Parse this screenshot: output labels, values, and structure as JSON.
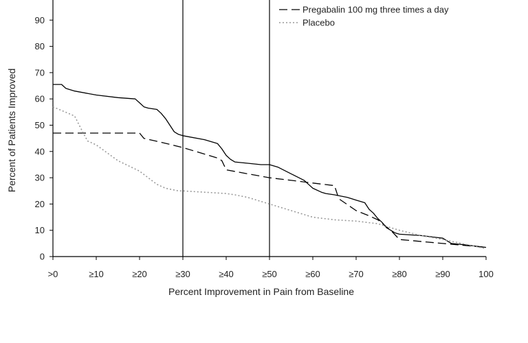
{
  "chart_data": {
    "type": "line",
    "title": "",
    "xlabel": "Percent Improvement in Pain from Baseline",
    "ylabel": "Percent of Patients Improved",
    "xlim": [
      0,
      100
    ],
    "ylim": [
      0,
      100
    ],
    "x_ticks": [
      {
        "value": 0,
        "label": ">0"
      },
      {
        "value": 10,
        "label": "≥10"
      },
      {
        "value": 20,
        "label": "≥20"
      },
      {
        "value": 30,
        "label": "≥30"
      },
      {
        "value": 40,
        "label": "≥40"
      },
      {
        "value": 50,
        "label": "≥50"
      },
      {
        "value": 60,
        "label": "≥60"
      },
      {
        "value": 70,
        "label": "≥70"
      },
      {
        "value": 80,
        "label": "≥80"
      },
      {
        "value": 90,
        "label": "≥90"
      },
      {
        "value": 100,
        "label": "100"
      }
    ],
    "y_ticks": [
      {
        "value": 0,
        "label": "0"
      },
      {
        "value": 10,
        "label": "10"
      },
      {
        "value": 20,
        "label": "20"
      },
      {
        "value": 30,
        "label": "30"
      },
      {
        "value": 40,
        "label": "40"
      },
      {
        "value": 50,
        "label": "50"
      },
      {
        "value": 60,
        "label": "60"
      },
      {
        "value": 70,
        "label": "70"
      },
      {
        "value": 80,
        "label": "80"
      },
      {
        "value": 90,
        "label": "90"
      }
    ],
    "reference_lines_x": [
      30,
      50
    ],
    "grid": false,
    "legend_position": "top-right",
    "series": [
      {
        "style": "solid",
        "color": "#000000",
        "x": [
          0,
          2,
          3,
          5,
          10,
          15,
          19,
          20,
          21,
          22,
          24,
          25,
          26,
          27,
          28,
          29,
          30,
          35,
          38,
          39,
          40,
          41,
          42,
          45,
          48,
          50,
          52,
          55,
          58,
          59,
          60,
          62,
          63,
          65,
          68,
          70,
          72,
          73,
          74,
          75,
          76,
          77,
          78,
          79,
          80,
          85,
          90,
          92,
          95,
          100
        ],
        "y": [
          65.5,
          65.5,
          64,
          63,
          61.5,
          60.5,
          60,
          58.5,
          57,
          56.5,
          56,
          54.5,
          52.5,
          50,
          47.5,
          46.5,
          46,
          44.5,
          43,
          41,
          38.5,
          37,
          36,
          35.5,
          35,
          35,
          34,
          31.5,
          29,
          27.5,
          26,
          24.5,
          24,
          23.5,
          22.5,
          21.5,
          20.5,
          18,
          16.5,
          14.5,
          13,
          11,
          10,
          9,
          8.5,
          8,
          7,
          5,
          4.5,
          3.5
        ]
      },
      {
        "style": "dashed",
        "color": "#000000",
        "x": [
          0,
          20,
          21,
          25,
          30,
          38,
          39,
          40,
          45,
          50,
          55,
          60,
          65,
          66,
          70,
          73,
          75,
          78,
          80,
          90,
          100
        ],
        "y": [
          47,
          47,
          45,
          43.5,
          41.5,
          37.5,
          36.5,
          33,
          31.5,
          30,
          29,
          28,
          27,
          22,
          17.5,
          15.5,
          14,
          10,
          6.5,
          5,
          3.5
        ]
      },
      {
        "name": "Placebo",
        "style": "dotted",
        "color": "#999999",
        "x": [
          0,
          5,
          7,
          8,
          10,
          15,
          20,
          24,
          26,
          29,
          30,
          40,
          42,
          45,
          50,
          55,
          60,
          65,
          70,
          75,
          78,
          80,
          85,
          90,
          100
        ],
        "y": [
          57,
          53.5,
          47,
          44,
          42.5,
          36.5,
          32.5,
          27.5,
          26,
          25,
          25,
          24,
          23.5,
          22.5,
          20,
          17.5,
          15,
          14,
          13.5,
          12.5,
          11,
          10,
          8,
          6.5,
          3
        ]
      }
    ],
    "legend": [
      {
        "label": "Pregabalin 100 mg three times a day",
        "style": "dashed"
      },
      {
        "label": "Placebo",
        "style": "dotted"
      }
    ]
  }
}
